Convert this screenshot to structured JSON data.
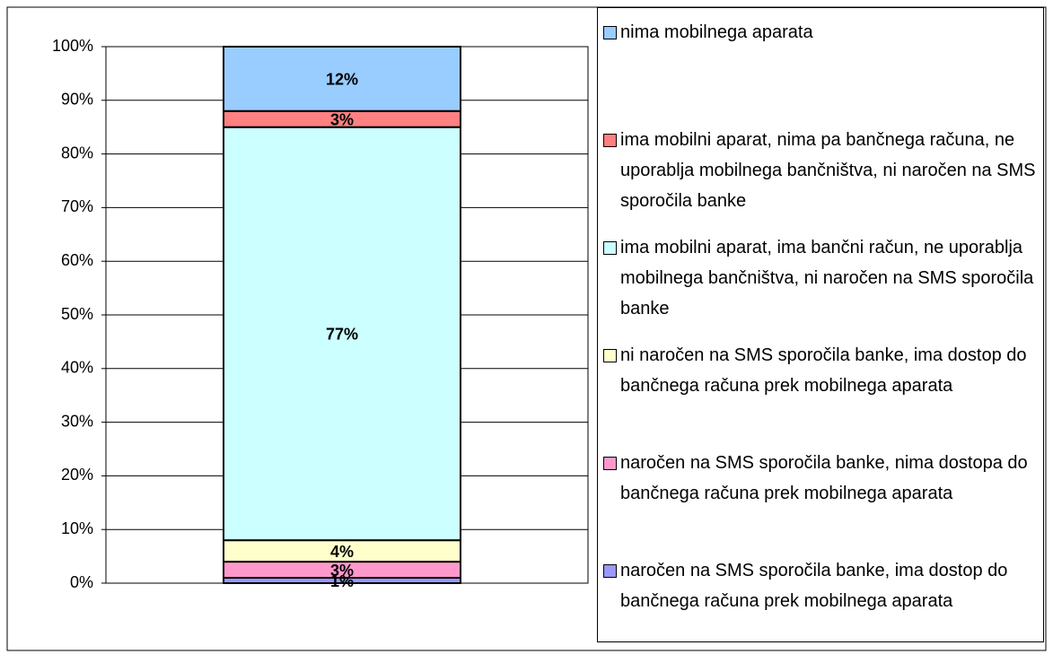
{
  "chart_data": {
    "type": "stacked_bar",
    "categories": [
      null
    ],
    "series": [
      {
        "name": "naročen na SMS sporočila banke, ima dostop do bančnega računa prek mobilnega aparata",
        "color": "#9999ff",
        "values": [
          1
        ],
        "value_labels": [
          "1%"
        ]
      },
      {
        "name": "naročen na SMS sporočila banke, nima dostopa do bančnega računa prek mobilnega aparata",
        "color": "#ff99cc",
        "values": [
          3
        ],
        "value_labels": [
          "3%"
        ]
      },
      {
        "name": "ni naročen na SMS sporočila banke, ima dostop do bančnega računa prek mobilnega aparata",
        "color": "#ffffcc",
        "values": [
          4
        ],
        "value_labels": [
          "4%"
        ]
      },
      {
        "name": "ima mobilni aparat, ima bančni račun, ne uporablja mobilnega bančništva, ni naročen na SMS sporočila banke",
        "color": "#ccffff",
        "values": [
          77
        ],
        "value_labels": [
          "77%"
        ]
      },
      {
        "name": "ima mobilni aparat, nima pa bančnega računa, ne uporablja mobilnega bančništva, ni naročen na SMS sporočila banke",
        "color": "#ff8080",
        "values": [
          3
        ],
        "value_labels": [
          "3%"
        ]
      },
      {
        "name": "nima mobilnega aparata",
        "color": "#99ccff",
        "values": [
          12
        ],
        "value_labels": [
          "12%"
        ]
      }
    ],
    "ylim": [
      0,
      100
    ],
    "yticks": [
      {
        "value": 0,
        "label": "0%"
      },
      {
        "value": 10,
        "label": "10%"
      },
      {
        "value": 20,
        "label": "20%"
      },
      {
        "value": 30,
        "label": "30%"
      },
      {
        "value": 40,
        "label": "40%"
      },
      {
        "value": 50,
        "label": "50%"
      },
      {
        "value": 60,
        "label": "60%"
      },
      {
        "value": 70,
        "label": "70%"
      },
      {
        "value": 80,
        "label": "80%"
      },
      {
        "value": 90,
        "label": "90%"
      },
      {
        "value": 100,
        "label": "100%"
      }
    ],
    "grid": true,
    "legend": "right"
  }
}
